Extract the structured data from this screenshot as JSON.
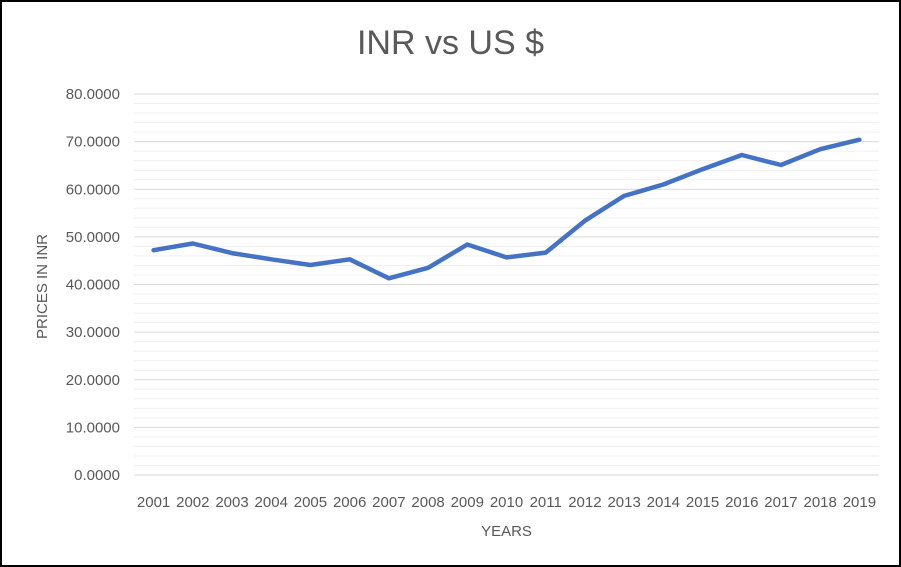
{
  "chart_data": {
    "type": "line",
    "title": "INR vs US $",
    "xlabel": "YEARS",
    "ylabel": "PRICES IN INR",
    "ylim": [
      0,
      80
    ],
    "y_ticks": [
      "0.0000",
      "10.0000",
      "20.0000",
      "30.0000",
      "40.0000",
      "50.0000",
      "60.0000",
      "70.0000",
      "80.0000"
    ],
    "categories": [
      "2001",
      "2002",
      "2003",
      "2004",
      "2005",
      "2006",
      "2007",
      "2008",
      "2009",
      "2010",
      "2011",
      "2012",
      "2013",
      "2014",
      "2015",
      "2016",
      "2017",
      "2018",
      "2019"
    ],
    "series": [
      {
        "values": [
          47.2,
          48.6,
          46.6,
          45.3,
          44.1,
          45.3,
          41.3,
          43.5,
          48.4,
          45.7,
          46.7,
          53.4,
          58.6,
          61.0,
          64.2,
          67.2,
          65.1,
          68.4,
          70.4
        ],
        "color": "#4472c4"
      }
    ],
    "grid": true,
    "minor_grid": true,
    "legend": "none"
  }
}
